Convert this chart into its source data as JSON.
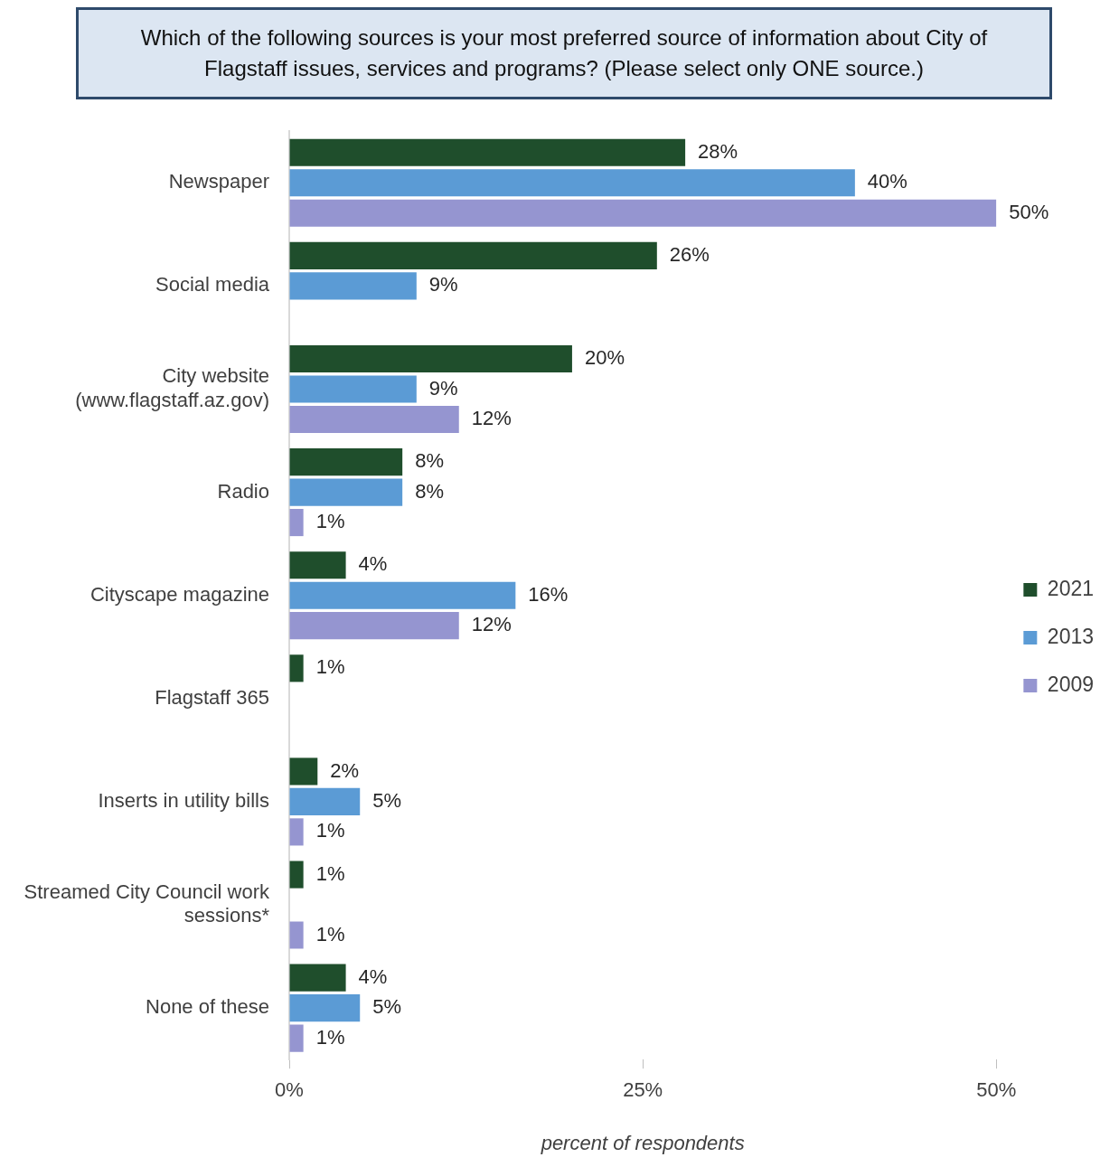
{
  "chart_data": {
    "type": "bar",
    "orientation": "horizontal",
    "title": "Which of the following sources is your most preferred source of information about City of Flagstaff issues, services and programs? (Please select only ONE source.)",
    "xlabel": "percent of respondents",
    "categories": [
      "Newspaper",
      "Social media",
      "City website (www.flagstaff.az.gov)",
      "Radio",
      "Cityscape magazine",
      "Flagstaff 365",
      "Inserts in utility bills",
      "Streamed City Council work sessions*",
      "None of these"
    ],
    "series": [
      {
        "name": "2021",
        "color": "#1f4e2c",
        "values": [
          28,
          26,
          20,
          8,
          4,
          1,
          2,
          1,
          4
        ],
        "value_labels": [
          "28%",
          "26%",
          "20%",
          "8%",
          "4%",
          "1%",
          "2%",
          "1%",
          "4%"
        ]
      },
      {
        "name": "2013",
        "color": "#5b9bd5",
        "values": [
          40,
          9,
          9,
          8,
          16,
          null,
          5,
          null,
          5
        ],
        "value_labels": [
          "40%",
          "9%",
          "9%",
          "8%",
          "16%",
          null,
          "5%",
          null,
          "5%"
        ]
      },
      {
        "name": "2009",
        "color": "#9595d0",
        "values": [
          50,
          null,
          12,
          1,
          12,
          null,
          1,
          1,
          1
        ],
        "value_labels": [
          "50%",
          null,
          "12%",
          "1%",
          "12%",
          null,
          "1%",
          "1%",
          "1%"
        ]
      }
    ],
    "xlim": [
      0,
      50
    ],
    "xticks": [
      {
        "value": 0,
        "label": "0%"
      },
      {
        "value": 25,
        "label": "25%"
      },
      {
        "value": 50,
        "label": "50%"
      }
    ],
    "grid": false,
    "legend": "right"
  }
}
